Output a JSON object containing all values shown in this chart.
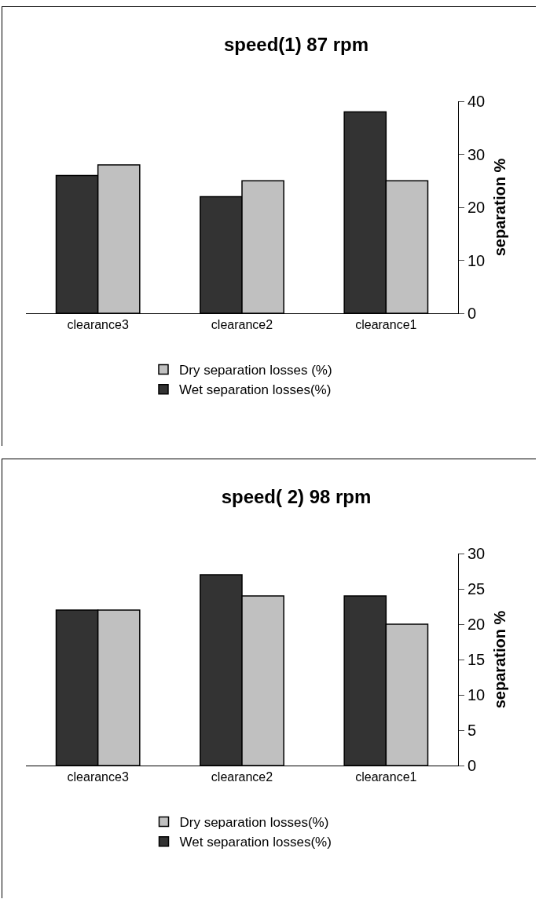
{
  "chart_data": [
    {
      "type": "bar",
      "title": "speed(1) 87 rpm",
      "ylabel": "separation %",
      "categories": [
        "clearance3",
        "clearance2",
        "clearance1"
      ],
      "series": [
        {
          "name": "Wet separation losses(%)",
          "color": "#333333",
          "values": [
            26,
            22,
            38
          ]
        },
        {
          "name": "Dry separation losses (%)",
          "color": "#c0c0c0",
          "values": [
            28,
            25,
            25
          ]
        }
      ],
      "ylim": [
        0,
        40
      ],
      "yticks": [
        0,
        10,
        20,
        30,
        40
      ],
      "grid": false,
      "legend": "bottom"
    },
    {
      "type": "bar",
      "title": "speed( 2) 98 rpm",
      "ylabel": "separation %",
      "categories": [
        "clearance3",
        "clearance2",
        "clearance1"
      ],
      "series": [
        {
          "name": "Wet separation losses(%)",
          "color": "#333333",
          "values": [
            22,
            27,
            24
          ]
        },
        {
          "name": "Dry separation losses(%)",
          "color": "#c0c0c0",
          "values": [
            22,
            24,
            20
          ]
        }
      ],
      "ylim": [
        0,
        30
      ],
      "yticks": [
        0,
        5,
        10,
        15,
        20,
        25,
        30
      ],
      "grid": false,
      "legend": "bottom"
    }
  ]
}
